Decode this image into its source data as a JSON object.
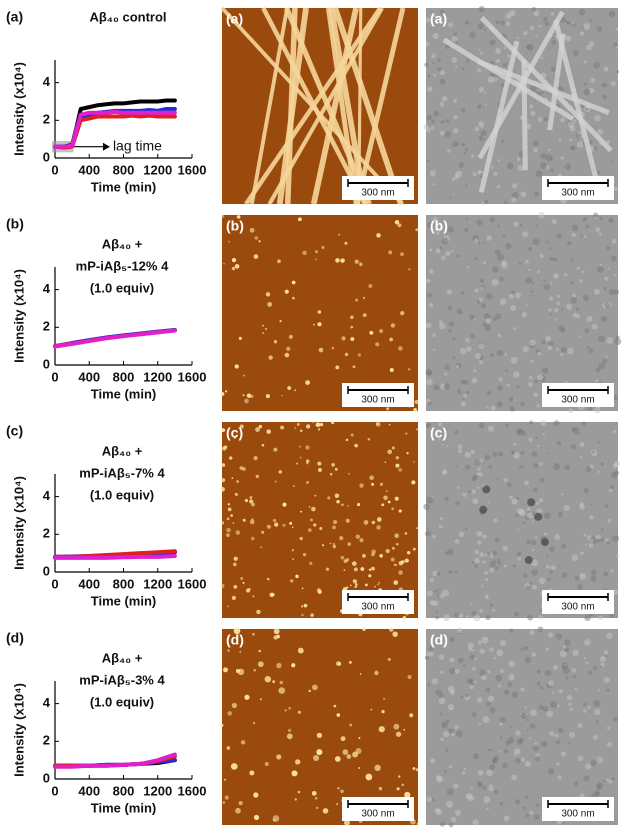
{
  "chart_data": [
    {
      "type": "line",
      "panel": "(a)",
      "title_lines": [
        "Aβ₄₀ control"
      ],
      "ylabel": "Intensity (x10⁴)",
      "xlabel": "Time (min)",
      "annotation": "lag time",
      "x": [
        0,
        100,
        200,
        250,
        300,
        400,
        500,
        600,
        700,
        800,
        900,
        1000,
        1100,
        1200,
        1300,
        1400
      ],
      "series": [
        {
          "color": "#000000",
          "values": [
            0.6,
            0.6,
            0.7,
            1.6,
            2.6,
            2.7,
            2.8,
            2.85,
            2.9,
            2.9,
            2.95,
            3.0,
            3.0,
            3.0,
            3.05,
            3.05
          ]
        },
        {
          "color": "#1f2fd0",
          "values": [
            0.6,
            0.6,
            0.65,
            1.4,
            2.2,
            2.3,
            2.4,
            2.45,
            2.5,
            2.5,
            2.5,
            2.5,
            2.55,
            2.5,
            2.6,
            2.6
          ]
        },
        {
          "color": "#e02020",
          "values": [
            0.6,
            0.55,
            0.6,
            1.3,
            2.0,
            2.1,
            2.2,
            2.2,
            2.2,
            2.2,
            2.25,
            2.2,
            2.25,
            2.2,
            2.2,
            2.2
          ]
        },
        {
          "color": "#e020d0",
          "values": [
            0.6,
            0.6,
            0.65,
            1.5,
            2.3,
            2.4,
            2.4,
            2.4,
            2.45,
            2.4,
            2.4,
            2.4,
            2.4,
            2.4,
            2.4,
            2.4
          ]
        }
      ],
      "xlim": [
        0,
        1600
      ],
      "xticks": [
        0,
        400,
        800,
        1200,
        1600
      ],
      "ylim": [
        0,
        5.2
      ],
      "yticks": [
        0,
        2,
        4
      ]
    },
    {
      "type": "line",
      "panel": "(b)",
      "title_lines": [
        "Aβ₄₀ +",
        "mP-iAβ₅-12% 4",
        "(1.0 equiv)"
      ],
      "ylabel": "Intensity (x10⁴)",
      "xlabel": "Time (min)",
      "x": [
        0,
        200,
        400,
        600,
        800,
        1000,
        1200,
        1400
      ],
      "series": [
        {
          "color": "#000000",
          "values": [
            1.0,
            1.15,
            1.3,
            1.45,
            1.55,
            1.65,
            1.75,
            1.85
          ]
        },
        {
          "color": "#1f2fd0",
          "values": [
            1.0,
            1.17,
            1.32,
            1.46,
            1.57,
            1.67,
            1.77,
            1.86
          ]
        },
        {
          "color": "#e02020",
          "values": [
            1.0,
            1.14,
            1.28,
            1.43,
            1.54,
            1.64,
            1.74,
            1.84
          ]
        },
        {
          "color": "#e020d0",
          "values": [
            0.98,
            1.12,
            1.27,
            1.42,
            1.53,
            1.63,
            1.73,
            1.83
          ]
        }
      ],
      "xlim": [
        0,
        1600
      ],
      "xticks": [
        0,
        400,
        800,
        1200,
        1600
      ],
      "ylim": [
        0,
        5.2
      ],
      "yticks": [
        0,
        2,
        4
      ]
    },
    {
      "type": "line",
      "panel": "(c)",
      "title_lines": [
        "Aβ₄₀ +",
        "mP-iAβ₅-7% 4",
        "(1.0 equiv)"
      ],
      "ylabel": "Intensity (x10⁴)",
      "xlabel": "Time (min)",
      "x": [
        0,
        200,
        400,
        600,
        800,
        1000,
        1200,
        1400
      ],
      "series": [
        {
          "color": "#000000",
          "values": [
            0.8,
            0.8,
            0.8,
            0.85,
            0.9,
            0.95,
            1.0,
            1.05
          ]
        },
        {
          "color": "#1f2fd0",
          "values": [
            0.8,
            0.82,
            0.85,
            0.88,
            0.92,
            0.95,
            1.0,
            1.05
          ]
        },
        {
          "color": "#e02020",
          "values": [
            0.8,
            0.8,
            0.85,
            0.9,
            0.95,
            1.0,
            1.05,
            1.1
          ]
        },
        {
          "color": "#e020d0",
          "values": [
            0.75,
            0.75,
            0.75,
            0.75,
            0.78,
            0.8,
            0.8,
            0.85
          ]
        }
      ],
      "xlim": [
        0,
        1600
      ],
      "xticks": [
        0,
        400,
        800,
        1200,
        1600
      ],
      "ylim": [
        0,
        5.2
      ],
      "yticks": [
        0,
        2,
        4
      ]
    },
    {
      "type": "line",
      "panel": "(d)",
      "title_lines": [
        "Aβ₄₀ +",
        "mP-iAβ₅-3% 4",
        "(1.0 equiv)"
      ],
      "ylabel": "Intensity (x10⁴)",
      "xlabel": "Time (min)",
      "x": [
        0,
        200,
        400,
        600,
        800,
        1000,
        1200,
        1400
      ],
      "series": [
        {
          "color": "#000000",
          "values": [
            0.7,
            0.7,
            0.7,
            0.75,
            0.75,
            0.8,
            0.85,
            1.0
          ]
        },
        {
          "color": "#1f2fd0",
          "values": [
            0.7,
            0.7,
            0.7,
            0.75,
            0.75,
            0.8,
            0.9,
            1.0
          ]
        },
        {
          "color": "#e02020",
          "values": [
            0.7,
            0.7,
            0.7,
            0.7,
            0.75,
            0.8,
            0.95,
            1.2
          ]
        },
        {
          "color": "#e020d0",
          "values": [
            0.65,
            0.65,
            0.7,
            0.7,
            0.75,
            0.8,
            1.0,
            1.3
          ]
        }
      ],
      "xlim": [
        0,
        1600
      ],
      "xticks": [
        0,
        400,
        800,
        1200,
        1600
      ],
      "ylim": [
        0,
        5.2
      ],
      "yticks": [
        0,
        2,
        4
      ]
    }
  ],
  "afm_panels": [
    {
      "label": "(a)",
      "scale_bar": "300 nm"
    },
    {
      "label": "(b)",
      "scale_bar": "300 nm"
    },
    {
      "label": "(c)",
      "scale_bar": "300 nm"
    },
    {
      "label": "(d)",
      "scale_bar": "300 nm"
    }
  ],
  "tem_panels": [
    {
      "label": "(a)",
      "scale_bar": "300 nm"
    },
    {
      "label": "(b)",
      "scale_bar": "300 nm"
    },
    {
      "label": "(c)",
      "scale_bar": "300 nm"
    },
    {
      "label": "(d)",
      "scale_bar": "300 nm"
    }
  ]
}
